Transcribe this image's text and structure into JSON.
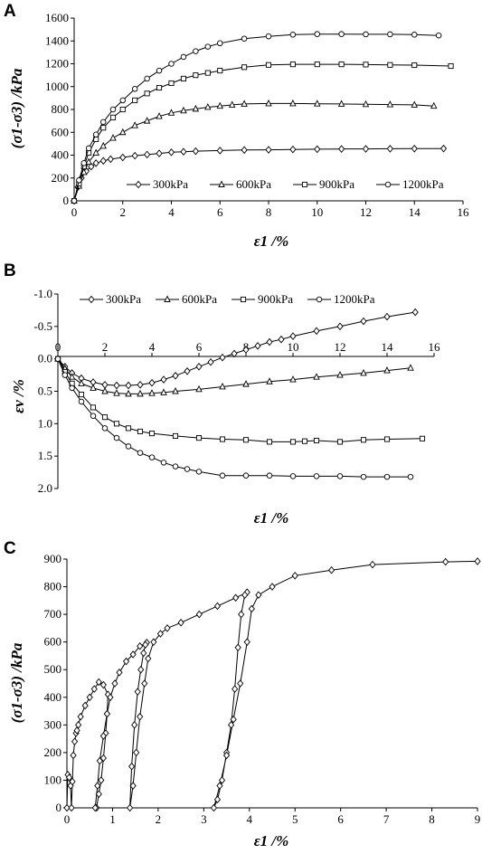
{
  "chart_data": [
    {
      "type": "line",
      "panel_label": "A",
      "ylabel": "(σ1-σ3) /kPa",
      "xlabel": "ε1 /%",
      "xlim": [
        0,
        16
      ],
      "ylim": [
        0,
        1600
      ],
      "xticks": [
        "0",
        "2",
        "4",
        "6",
        "8",
        "10",
        "12",
        "14",
        "16"
      ],
      "yticks": [
        "0",
        "200",
        "400",
        "600",
        "800",
        "1000",
        "1200",
        "1400",
        "1600"
      ],
      "grid": false,
      "legend_position": "bottom-center",
      "series": [
        {
          "name": "300kPa",
          "marker": "diamond",
          "x": [
            0,
            0.15,
            0.3,
            0.5,
            0.7,
            0.9,
            1.2,
            1.5,
            2,
            2.5,
            3,
            3.5,
            4,
            4.5,
            5,
            6,
            7,
            8,
            9,
            10,
            11,
            12,
            13,
            14,
            15.2
          ],
          "y": [
            0,
            120,
            200,
            260,
            300,
            330,
            350,
            365,
            380,
            395,
            405,
            415,
            425,
            430,
            435,
            440,
            445,
            447,
            450,
            452,
            454,
            455,
            456,
            457,
            458
          ]
        },
        {
          "name": "600kPa",
          "marker": "triangle",
          "x": [
            0,
            0.2,
            0.4,
            0.6,
            0.9,
            1.2,
            1.6,
            2,
            2.5,
            3,
            3.5,
            4,
            4.5,
            5,
            5.5,
            6,
            6.5,
            7,
            8,
            9,
            10,
            11,
            12,
            13,
            14,
            14.8
          ],
          "y": [
            0,
            130,
            250,
            340,
            420,
            480,
            550,
            600,
            660,
            700,
            740,
            770,
            790,
            805,
            820,
            830,
            840,
            848,
            852,
            852,
            850,
            848,
            845,
            843,
            840,
            830
          ]
        },
        {
          "name": "900kPa",
          "marker": "square",
          "x": [
            0,
            0.2,
            0.4,
            0.6,
            0.9,
            1.2,
            1.6,
            2,
            2.5,
            3,
            3.5,
            4,
            4.5,
            5,
            5.5,
            6,
            7,
            8,
            9,
            10,
            11,
            12,
            13,
            14,
            15.5
          ],
          "y": [
            0,
            150,
            300,
            420,
            540,
            640,
            730,
            800,
            880,
            940,
            990,
            1030,
            1070,
            1100,
            1120,
            1140,
            1170,
            1190,
            1195,
            1195,
            1195,
            1193,
            1190,
            1188,
            1180
          ]
        },
        {
          "name": "1200kPa",
          "marker": "circle",
          "x": [
            0,
            0.2,
            0.4,
            0.6,
            0.9,
            1.2,
            1.6,
            2,
            2.5,
            3,
            3.5,
            4,
            4.5,
            5,
            5.5,
            6,
            7,
            8,
            9,
            10,
            11,
            12,
            13,
            14,
            15
          ],
          "y": [
            0,
            180,
            330,
            460,
            580,
            690,
            800,
            880,
            980,
            1070,
            1140,
            1200,
            1260,
            1310,
            1350,
            1380,
            1420,
            1440,
            1455,
            1460,
            1460,
            1458,
            1458,
            1455,
            1448
          ]
        }
      ]
    },
    {
      "type": "line",
      "panel_label": "B",
      "ylabel": "εv /%",
      "xlabel": "ε1 /%",
      "xlim": [
        0,
        16
      ],
      "ylim": [
        -1.0,
        2.0
      ],
      "y_inverted": true,
      "x_axis_position": "top",
      "xticks": [
        "0",
        "2",
        "4",
        "6",
        "8",
        "10",
        "12",
        "14",
        "16"
      ],
      "yticks": [
        "-1.0",
        "-0.5",
        "0.0",
        "0.5",
        "1.0",
        "1.5",
        "2.0"
      ],
      "grid": false,
      "legend_position": "top",
      "series": [
        {
          "name": "300kPa",
          "marker": "diamond",
          "x": [
            0,
            0.3,
            0.6,
            1,
            1.5,
            2,
            2.5,
            3,
            3.5,
            4,
            4.5,
            5,
            5.5,
            6,
            6.5,
            7,
            7.5,
            8,
            8.5,
            9,
            9.5,
            10,
            11,
            12,
            13,
            14,
            15.2
          ],
          "y": [
            0,
            0.12,
            0.22,
            0.3,
            0.36,
            0.4,
            0.41,
            0.41,
            0.4,
            0.37,
            0.32,
            0.26,
            0.19,
            0.12,
            0.05,
            -0.02,
            -0.08,
            -0.14,
            -0.2,
            -0.26,
            -0.3,
            -0.35,
            -0.43,
            -0.5,
            -0.58,
            -0.65,
            -0.72
          ]
        },
        {
          "name": "600kPa",
          "marker": "triangle",
          "x": [
            0,
            0.3,
            0.6,
            1,
            1.5,
            2,
            2.5,
            3,
            3.5,
            4,
            4.5,
            5,
            6,
            7,
            8,
            9,
            10,
            11,
            12,
            13,
            14,
            15
          ],
          "y": [
            0,
            0.15,
            0.28,
            0.38,
            0.45,
            0.5,
            0.53,
            0.54,
            0.54,
            0.53,
            0.52,
            0.5,
            0.47,
            0.43,
            0.39,
            0.35,
            0.32,
            0.28,
            0.25,
            0.22,
            0.18,
            0.14
          ]
        },
        {
          "name": "900kPa",
          "marker": "square",
          "x": [
            0,
            0.3,
            0.6,
            1,
            1.5,
            2,
            2.5,
            3,
            3.5,
            4,
            5,
            6,
            7,
            8,
            9,
            10,
            10.5,
            11,
            12,
            13,
            14,
            15.5
          ],
          "y": [
            0,
            0.2,
            0.38,
            0.55,
            0.75,
            0.9,
            1.0,
            1.07,
            1.12,
            1.15,
            1.19,
            1.22,
            1.24,
            1.25,
            1.28,
            1.28,
            1.27,
            1.26,
            1.28,
            1.25,
            1.24,
            1.23
          ]
        },
        {
          "name": "1200kPa",
          "marker": "circle",
          "x": [
            0,
            0.3,
            0.6,
            1,
            1.5,
            2,
            2.5,
            3,
            3.5,
            4,
            4.5,
            5,
            5.5,
            6,
            7,
            8,
            9,
            10,
            11,
            12,
            13,
            14,
            15
          ],
          "y": [
            0,
            0.25,
            0.45,
            0.66,
            0.88,
            1.07,
            1.22,
            1.35,
            1.45,
            1.52,
            1.6,
            1.66,
            1.7,
            1.74,
            1.8,
            1.8,
            1.8,
            1.81,
            1.81,
            1.81,
            1.82,
            1.82,
            1.82
          ]
        }
      ]
    },
    {
      "type": "line",
      "panel_label": "C",
      "ylabel": "(σ1-σ3) /kPa",
      "xlabel": "ε1 /%",
      "xlim": [
        0,
        9
      ],
      "ylim": [
        0,
        900
      ],
      "xticks": [
        "0",
        "1",
        "2",
        "3",
        "4",
        "5",
        "6",
        "7",
        "8",
        "9"
      ],
      "yticks": [
        "0",
        "100",
        "200",
        "300",
        "400",
        "500",
        "600",
        "700",
        "800",
        "900"
      ],
      "grid": false,
      "series": [
        {
          "name": "",
          "marker": "diamond",
          "x": [
            0,
            0.02,
            0.05,
            0.08,
            0.1,
            0.12,
            0.14,
            0.17,
            0.2,
            0.22,
            0.25,
            0.3,
            0.4,
            0.5,
            0.6,
            0.7,
            0.8,
            0.9,
            0.88,
            0.85,
            0.8,
            0.75,
            0.7,
            0.65,
            0.62,
            0.67,
            0.72,
            0.8,
            0.88,
            0.95,
            1.05,
            1.15,
            1.3,
            1.45,
            1.6,
            1.75,
            1.72,
            1.68,
            1.62,
            1.55,
            1.48,
            1.42,
            1.38,
            1.45,
            1.52,
            1.6,
            1.7,
            1.78,
            1.9,
            2.05,
            2.2,
            2.5,
            2.9,
            3.3,
            3.7,
            3.95,
            3.9,
            3.82,
            3.75,
            3.68,
            3.6,
            3.5,
            3.4,
            3.3,
            3.22,
            3.35,
            3.5,
            3.65,
            3.8,
            3.95,
            4.05,
            4.2,
            4.5,
            5,
            5.8,
            6.7,
            8.3,
            9
          ],
          "y": [
            0,
            120,
            110,
            80,
            0,
            95,
            190,
            240,
            270,
            280,
            300,
            330,
            370,
            400,
            430,
            455,
            445,
            410,
            340,
            270,
            180,
            100,
            50,
            0,
            0,
            80,
            170,
            260,
            340,
            400,
            450,
            490,
            530,
            555,
            585,
            598,
            590,
            560,
            500,
            420,
            300,
            150,
            0,
            80,
            200,
            330,
            450,
            540,
            600,
            630,
            650,
            670,
            700,
            730,
            760,
            780,
            770,
            700,
            580,
            430,
            300,
            200,
            100,
            30,
            0,
            80,
            190,
            320,
            450,
            600,
            720,
            770,
            800,
            840,
            860,
            880,
            890,
            892
          ]
        }
      ]
    }
  ]
}
